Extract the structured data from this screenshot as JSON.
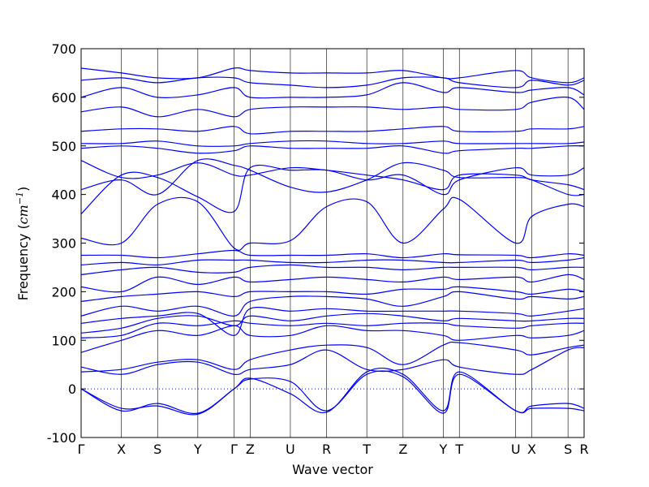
{
  "chart_data": {
    "type": "line",
    "title": "",
    "xlabel": "Wave vector",
    "ylabel": "Frequency",
    "ylabel_unit": "cm",
    "ylabel_exp": "−1",
    "ylim": [
      -100,
      700
    ],
    "yticks": [
      -100,
      0,
      100,
      200,
      300,
      400,
      500,
      600,
      700
    ],
    "grid": false,
    "legend": "none",
    "line_color": "#0000ff",
    "zero_line_color": "#0000ff",
    "kpoints": [
      {
        "label": "Γ",
        "pos": 0.0
      },
      {
        "label": "X",
        "pos": 0.5
      },
      {
        "label": "S",
        "pos": 0.95
      },
      {
        "label": "Y",
        "pos": 1.45
      },
      {
        "label": "Γ",
        "pos": 1.9
      },
      {
        "label": "Z",
        "pos": 2.1
      },
      {
        "label": "U",
        "pos": 2.6
      },
      {
        "label": "R",
        "pos": 3.05
      },
      {
        "label": "T",
        "pos": 3.55
      },
      {
        "label": "Z",
        "pos": 4.0
      },
      {
        "label": "Y",
        "pos": 4.5
      },
      {
        "label": "T",
        "pos": 4.7
      },
      {
        "label": "U",
        "pos": 5.4
      },
      {
        "label": "X",
        "pos": 5.6
      },
      {
        "label": "S",
        "pos": 6.05
      },
      {
        "label": "R",
        "pos": 6.25
      }
    ],
    "x": [
      0.0,
      0.5,
      0.95,
      1.45,
      1.9,
      2.1,
      2.6,
      3.05,
      3.55,
      4.0,
      4.5,
      4.7,
      5.4,
      5.6,
      6.05,
      6.25
    ],
    "series": [
      {
        "values": [
          0,
          -45,
          -30,
          -50,
          0,
          20,
          15,
          -45,
          30,
          25,
          -50,
          30,
          -45,
          -40,
          -40,
          -45
        ]
      },
      {
        "values": [
          0,
          -40,
          -35,
          -52,
          0,
          22,
          -10,
          -48,
          35,
          30,
          -45,
          35,
          -45,
          -35,
          -30,
          -40
        ]
      },
      {
        "values": [
          45,
          30,
          50,
          55,
          30,
          40,
          50,
          80,
          40,
          40,
          60,
          45,
          30,
          40,
          80,
          85
        ]
      },
      {
        "values": [
          35,
          40,
          55,
          60,
          40,
          60,
          80,
          90,
          85,
          50,
          90,
          95,
          80,
          70,
          85,
          90
        ]
      },
      {
        "values": [
          75,
          100,
          120,
          110,
          130,
          110,
          110,
          130,
          120,
          120,
          110,
          100,
          110,
          105,
          110,
          120
        ]
      },
      {
        "values": [
          105,
          110,
          135,
          130,
          140,
          135,
          130,
          135,
          130,
          135,
          135,
          130,
          125,
          130,
          135,
          135
        ]
      },
      {
        "values": [
          115,
          125,
          145,
          150,
          130,
          150,
          140,
          150,
          155,
          150,
          140,
          145,
          140,
          140,
          145,
          145
        ]
      },
      {
        "values": [
          135,
          145,
          150,
          155,
          110,
          165,
          160,
          165,
          160,
          160,
          160,
          160,
          155,
          150,
          160,
          165
        ]
      },
      {
        "values": [
          150,
          170,
          160,
          170,
          150,
          180,
          190,
          190,
          185,
          170,
          190,
          200,
          185,
          190,
          185,
          190
        ]
      },
      {
        "values": [
          180,
          190,
          195,
          200,
          190,
          200,
          200,
          200,
          195,
          205,
          205,
          210,
          200,
          195,
          205,
          200
        ]
      },
      {
        "values": [
          210,
          200,
          230,
          215,
          230,
          220,
          225,
          230,
          225,
          220,
          230,
          225,
          230,
          220,
          235,
          225
        ]
      },
      {
        "values": [
          235,
          245,
          250,
          240,
          240,
          250,
          255,
          250,
          250,
          245,
          250,
          250,
          250,
          245,
          250,
          250
        ]
      },
      {
        "values": [
          255,
          260,
          255,
          265,
          265,
          265,
          260,
          260,
          265,
          265,
          260,
          260,
          265,
          260,
          265,
          270
        ]
      },
      {
        "values": [
          275,
          275,
          270,
          278,
          285,
          275,
          275,
          275,
          278,
          270,
          278,
          276,
          275,
          270,
          278,
          275
        ]
      },
      {
        "values": [
          310,
          300,
          380,
          385,
          290,
          300,
          305,
          375,
          385,
          300,
          370,
          390,
          300,
          355,
          380,
          375
        ]
      },
      {
        "values": [
          360,
          440,
          435,
          395,
          365,
          455,
          450,
          450,
          430,
          440,
          400,
          430,
          455,
          440,
          440,
          455
        ]
      },
      {
        "values": [
          410,
          430,
          400,
          470,
          460,
          450,
          415,
          405,
          430,
          465,
          450,
          435,
          435,
          430,
          400,
          400
        ]
      },
      {
        "values": [
          470,
          435,
          440,
          465,
          440,
          440,
          455,
          450,
          440,
          430,
          410,
          440,
          440,
          430,
          420,
          410
        ]
      },
      {
        "values": [
          495,
          500,
          495,
          485,
          490,
          500,
          495,
          495,
          495,
          500,
          485,
          490,
          495,
          495,
          500,
          500
        ]
      },
      {
        "values": [
          505,
          505,
          510,
          500,
          500,
          505,
          510,
          510,
          505,
          505,
          510,
          505,
          505,
          505,
          505,
          508
        ]
      },
      {
        "values": [
          530,
          535,
          535,
          530,
          540,
          525,
          530,
          530,
          530,
          535,
          540,
          530,
          530,
          535,
          535,
          540
        ]
      },
      {
        "values": [
          570,
          580,
          560,
          575,
          560,
          575,
          580,
          580,
          580,
          575,
          580,
          575,
          575,
          590,
          600,
          575
        ]
      },
      {
        "values": [
          600,
          620,
          600,
          605,
          620,
          600,
          600,
          600,
          605,
          630,
          610,
          620,
          610,
          615,
          620,
          605
        ]
      },
      {
        "values": [
          635,
          640,
          630,
          640,
          640,
          630,
          625,
          620,
          625,
          640,
          640,
          630,
          620,
          635,
          625,
          635
        ]
      },
      {
        "values": [
          660,
          650,
          640,
          640,
          660,
          655,
          650,
          650,
          650,
          655,
          640,
          640,
          655,
          640,
          630,
          640
        ]
      }
    ]
  }
}
